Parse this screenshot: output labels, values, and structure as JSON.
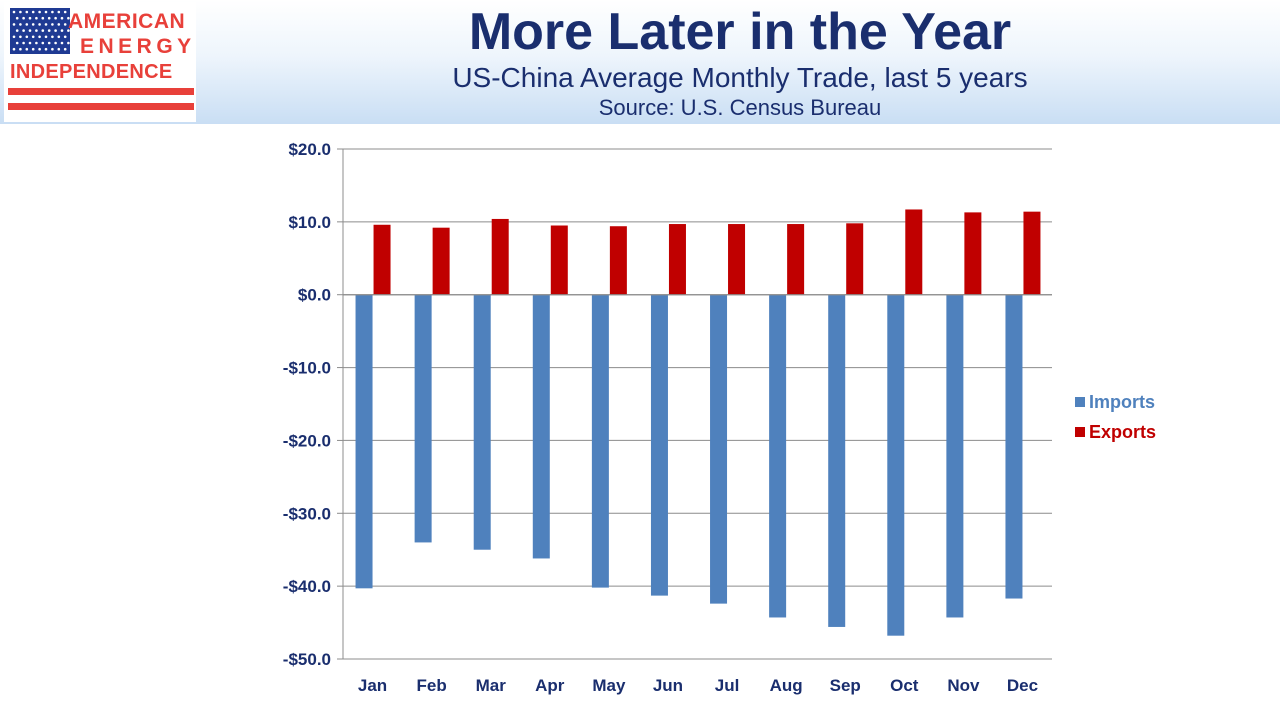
{
  "header": {
    "logo_line1": "AMERICAN",
    "logo_line2": "ENERGY",
    "logo_line3": "INDEPENDENCE",
    "title": "More Later in the Year",
    "subtitle": "US-China Average Monthly Trade, last 5 years",
    "source": "Source: U.S. Census Bureau"
  },
  "colors": {
    "imports": "#4f81bd",
    "exports": "#c00000",
    "text": "#1a2e6e",
    "logo_red": "#e8403a",
    "logo_blue": "#1f3a93"
  },
  "chart_data": {
    "type": "bar",
    "categories": [
      "Jan",
      "Feb",
      "Mar",
      "Apr",
      "May",
      "Jun",
      "Jul",
      "Aug",
      "Sep",
      "Oct",
      "Nov",
      "Dec"
    ],
    "series": [
      {
        "name": "Imports",
        "values": [
          -40.3,
          -34.0,
          -35.0,
          -36.2,
          -40.2,
          -41.3,
          -42.4,
          -44.3,
          -45.6,
          -46.8,
          -44.3,
          -41.7
        ]
      },
      {
        "name": "Exports",
        "values": [
          9.6,
          9.2,
          10.4,
          9.5,
          9.4,
          9.7,
          9.7,
          9.7,
          9.8,
          11.7,
          11.3,
          11.4
        ]
      }
    ],
    "ylim": [
      -50,
      20
    ],
    "yticks": [
      20,
      10,
      0,
      -10,
      -20,
      -30,
      -40,
      -50
    ],
    "ytick_labels": [
      "$20.0",
      "$10.0",
      "$0.0",
      "-$10.0",
      "-$20.0",
      "-$30.0",
      "-$40.0",
      "-$50.0"
    ],
    "grid": true,
    "legend_position": "right",
    "xlabel": "",
    "ylabel": ""
  }
}
